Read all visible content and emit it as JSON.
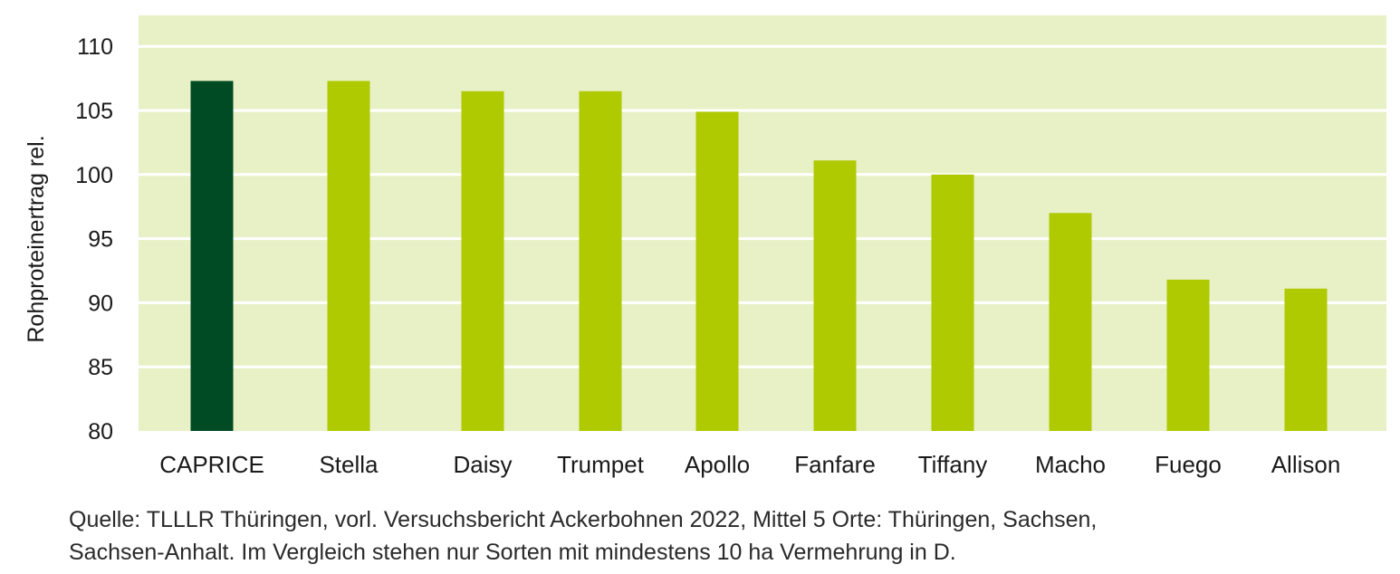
{
  "chart_data": {
    "type": "bar",
    "categories": [
      "CAPRICE",
      "Stella",
      "Daisy",
      "Trumpet",
      "Apollo",
      "Fanfare",
      "Tiffany",
      "Macho",
      "Fuego",
      "Allison"
    ],
    "values": [
      107.3,
      107.3,
      106.5,
      106.5,
      104.9,
      101.1,
      100.0,
      97.0,
      91.8,
      91.1
    ],
    "highlight_index": 0,
    "ylabel": "Rohproteinertrag rel.",
    "xlabel": "",
    "ylim": [
      80,
      112
    ],
    "yticks": [
      80,
      85,
      90,
      95,
      100,
      105,
      110
    ],
    "grid": true,
    "legend": "none",
    "colors": {
      "plot_background": "#e8f0c6",
      "highlight_bar": "#004b23",
      "bar": "#afca00",
      "gridline": "#ffffff"
    }
  },
  "source_note": {
    "line1": "Quelle: TLLLR Thüringen, vorl. Versuchsbericht Ackerbohnen 2022, Mittel 5 Orte: Thüringen, Sachsen,",
    "line2": "Sachsen-Anhalt. Im Vergleich stehen nur Sorten mit mindestens 10 ha Vermehrung in D."
  }
}
